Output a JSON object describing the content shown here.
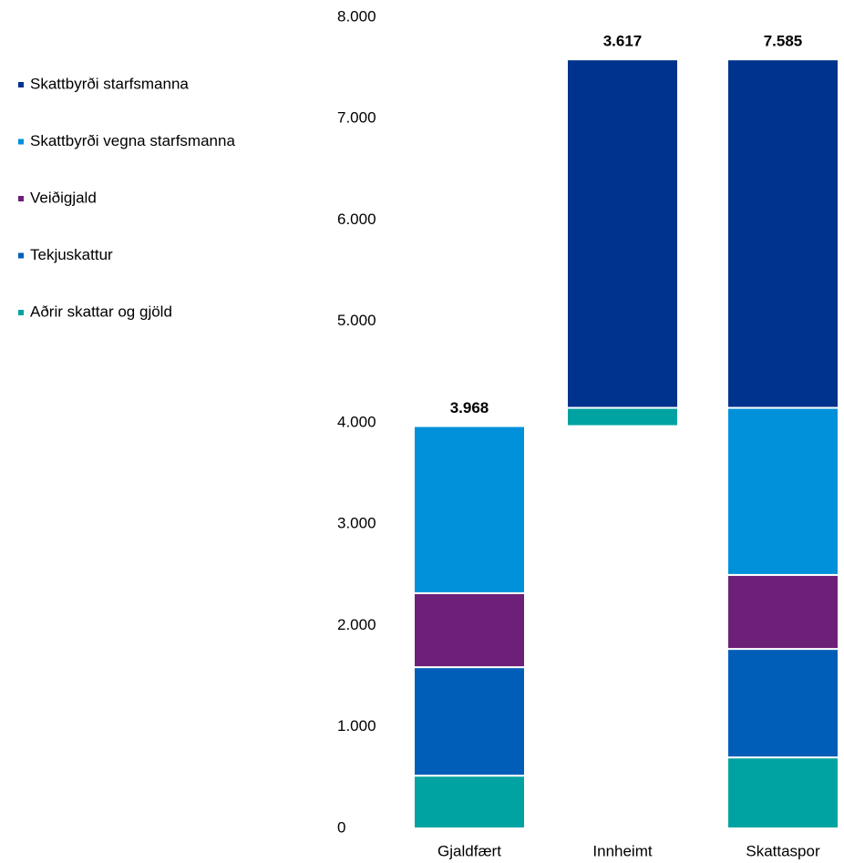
{
  "chart_data": {
    "type": "waterfall_stacked_bar",
    "categories": [
      "Gjaldfært",
      "Innheimt",
      "Skattaspor"
    ],
    "series": [
      {
        "name": "Skattbyrði starfsmanna",
        "color": "#00338d",
        "values": [
          null,
          3437,
          3437
        ]
      },
      {
        "name": "Skattbyrði vegna starfsmanna",
        "color": "#0091da",
        "values": [
          1648,
          null,
          1648
        ]
      },
      {
        "name": "Veiðigjald",
        "color": "#6d2077",
        "values": [
          730,
          null,
          730
        ]
      },
      {
        "name": "Tekjuskattur",
        "color": "#005eb8",
        "values": [
          1070,
          null,
          1070
        ]
      },
      {
        "name": "Aðrir skattar og gjöld",
        "color": "#00a3a1",
        "values": [
          520,
          180,
          700
        ]
      }
    ],
    "totals": [
      3968,
      3617,
      7585
    ],
    "value_labels": [
      "3.968",
      "3.617",
      "7.585"
    ],
    "ylim": [
      0,
      8000
    ],
    "yticks": [
      0,
      {
        "value": 1000,
        "label": "1.000"
      },
      {
        "value": 2000,
        "label": "2.000"
      },
      {
        "value": 3000,
        "label": "3.000"
      },
      {
        "value": 4000,
        "label": "4.000"
      },
      {
        "value": 5000,
        "label": "5.000"
      },
      {
        "value": 6000,
        "label": "6.000"
      },
      {
        "value": 7000,
        "label": "7.000"
      },
      {
        "value": 8000,
        "label": "8.000"
      }
    ],
    "grid": false,
    "legend": "left"
  }
}
